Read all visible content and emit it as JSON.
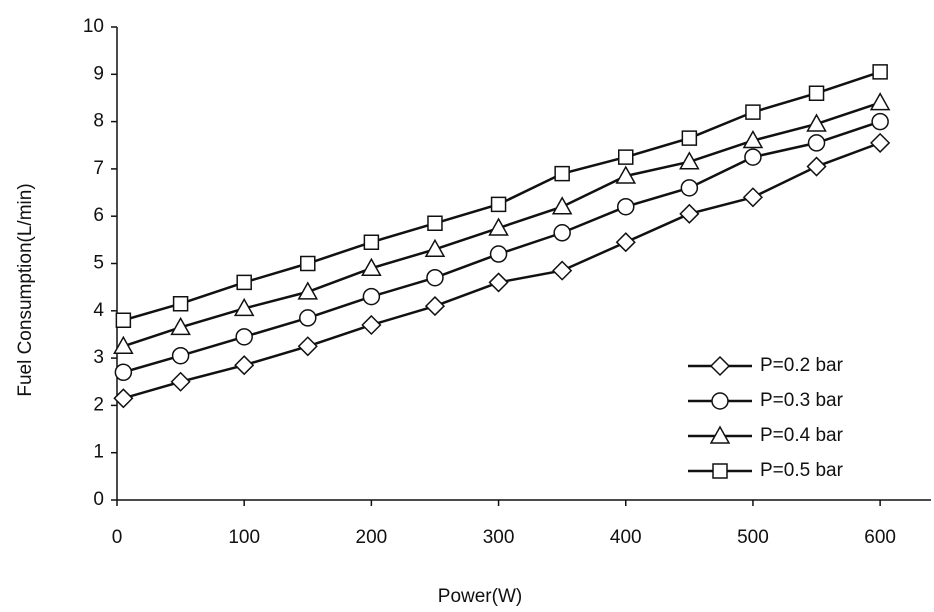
{
  "chart_data": {
    "type": "line",
    "x_label": "Power(W)",
    "y_label": "Fuel Consumption(L/min)",
    "x": [
      5,
      50,
      100,
      150,
      200,
      250,
      300,
      350,
      400,
      450,
      500,
      550,
      600
    ],
    "series": [
      {
        "name": "P=0.2 bar",
        "color": "#111111",
        "marker": "diamond",
        "values": [
          2.15,
          2.5,
          2.85,
          3.25,
          3.7,
          4.1,
          4.6,
          4.85,
          5.45,
          6.05,
          6.4,
          7.05,
          7.55
        ]
      },
      {
        "name": "P=0.3 bar",
        "color": "#111111",
        "marker": "circle",
        "values": [
          2.7,
          3.05,
          3.45,
          3.85,
          4.3,
          4.7,
          5.2,
          5.65,
          6.2,
          6.6,
          7.25,
          7.55,
          8.0
        ]
      },
      {
        "name": "P=0.4 bar",
        "color": "#111111",
        "marker": "triangle",
        "values": [
          3.25,
          3.65,
          4.05,
          4.4,
          4.9,
          5.3,
          5.75,
          6.2,
          6.85,
          7.15,
          7.6,
          7.95,
          8.4
        ]
      },
      {
        "name": "P=0.5 bar",
        "color": "#111111",
        "marker": "square",
        "values": [
          3.8,
          4.15,
          4.6,
          5.0,
          5.45,
          5.85,
          6.25,
          6.9,
          7.25,
          7.65,
          8.2,
          8.6,
          9.05
        ]
      }
    ],
    "xlim": [
      0,
      640
    ],
    "xticks": [
      0,
      100,
      200,
      300,
      400,
      500,
      600
    ],
    "ylim": [
      0,
      10
    ],
    "yticks": [
      0,
      1,
      2,
      3,
      4,
      5,
      6,
      7,
      8,
      9,
      10
    ],
    "grid": false,
    "legend": "bottom-right"
  }
}
